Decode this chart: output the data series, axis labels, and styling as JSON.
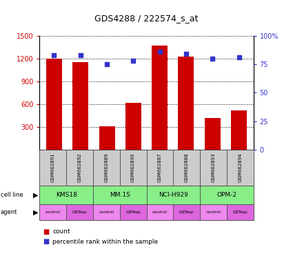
{
  "title": "GDS4288 / 222574_s_at",
  "samples": [
    "GSM662891",
    "GSM662892",
    "GSM662889",
    "GSM662890",
    "GSM662887",
    "GSM662888",
    "GSM662893",
    "GSM662894"
  ],
  "counts": [
    1200,
    1155,
    310,
    615,
    1370,
    1230,
    420,
    520
  ],
  "percentile_ranks": [
    83,
    83,
    75,
    78,
    86,
    84,
    80,
    81
  ],
  "cell_lines": [
    {
      "label": "KMS18",
      "span": [
        0,
        2
      ]
    },
    {
      "label": "MM.1S",
      "span": [
        2,
        4
      ]
    },
    {
      "label": "NCI-H929",
      "span": [
        4,
        6
      ]
    },
    {
      "label": "OPM-2",
      "span": [
        6,
        8
      ]
    }
  ],
  "agents": [
    "control",
    "DZNep",
    "control",
    "DZNep",
    "control",
    "DZNep",
    "control",
    "DZNep"
  ],
  "bar_color": "#cc0000",
  "dot_color": "#3333cc",
  "cell_line_color": "#88ee88",
  "agent_color_light": "#ee88ee",
  "agent_color_dark": "#dd66dd",
  "sample_box_color": "#cccccc",
  "ylim_left": [
    0,
    1500
  ],
  "yticks_left": [
    300,
    600,
    900,
    1200,
    1500
  ],
  "ylim_right": [
    0,
    100
  ],
  "yticks_right": [
    0,
    25,
    50,
    75,
    100
  ],
  "ylabel_left_color": "#cc0000",
  "ylabel_right_color": "#3333cc",
  "legend_count_label": "count",
  "legend_pct_label": "percentile rank within the sample"
}
